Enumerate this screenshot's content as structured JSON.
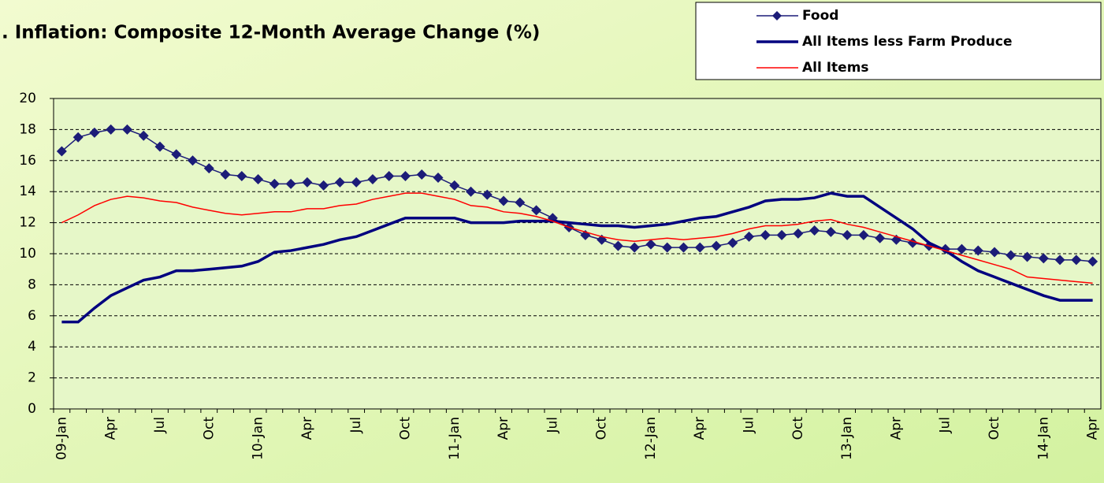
{
  "chart_data": {
    "type": "line",
    "title": ". Inflation: Composite 12-Month Average Change (%)",
    "categories": [
      "09-Jan",
      null,
      null,
      "Apr",
      null,
      null,
      "Jul",
      null,
      null,
      "Oct",
      null,
      null,
      "10-Jan",
      null,
      null,
      "Apr",
      null,
      null,
      "Jul",
      null,
      null,
      "Oct",
      null,
      null,
      "11-Jan",
      null,
      null,
      "Apr",
      null,
      null,
      "Jul",
      null,
      null,
      "Oct",
      null,
      null,
      "12-Jan",
      null,
      null,
      "Apr",
      null,
      null,
      "Jul",
      null,
      null,
      "Oct",
      null,
      null,
      "13-Jan",
      null,
      null,
      "Apr",
      null,
      null,
      "Jul",
      null,
      null,
      "Oct",
      null,
      null,
      "14-Jan",
      null,
      null,
      "Apr"
    ],
    "series": [
      {
        "name": "Food",
        "color": "#1c1c78",
        "marker": "diamond",
        "values": [
          16.6,
          17.5,
          17.8,
          18.0,
          18.0,
          17.6,
          16.9,
          16.4,
          16.0,
          15.5,
          15.1,
          15.0,
          14.8,
          14.5,
          14.5,
          14.6,
          14.4,
          14.6,
          14.6,
          14.8,
          15.0,
          15.0,
          15.1,
          14.9,
          14.4,
          14.0,
          13.8,
          13.4,
          13.3,
          12.8,
          12.3,
          11.7,
          11.2,
          10.9,
          10.5,
          10.4,
          10.6,
          10.4,
          10.4,
          10.4,
          10.5,
          10.7,
          11.1,
          11.2,
          11.2,
          11.3,
          11.5,
          11.4,
          11.2,
          11.2,
          11.0,
          10.9,
          10.7,
          10.5,
          10.3,
          10.3,
          10.2,
          10.1,
          9.9,
          9.8,
          9.7,
          9.6,
          9.6,
          9.5
        ]
      },
      {
        "name": "All Items less Farm Produce",
        "color": "#00007f",
        "values": [
          5.6,
          5.6,
          6.5,
          7.3,
          7.8,
          8.3,
          8.5,
          8.9,
          8.9,
          9.0,
          9.1,
          9.2,
          9.5,
          10.1,
          10.2,
          10.4,
          10.6,
          10.9,
          11.1,
          11.5,
          11.9,
          12.3,
          12.3,
          12.3,
          12.3,
          12.0,
          12.0,
          12.0,
          12.1,
          12.1,
          12.1,
          12.0,
          11.9,
          11.8,
          11.8,
          11.7,
          11.8,
          11.9,
          12.1,
          12.3,
          12.4,
          12.7,
          13.0,
          13.4,
          13.5,
          13.5,
          13.6,
          13.9,
          13.7,
          13.7,
          13.0,
          12.3,
          11.6,
          10.7,
          10.2,
          9.5,
          8.9,
          8.5,
          8.1,
          7.7,
          7.3,
          7.0,
          7.0,
          7.0
        ]
      },
      {
        "name": "All Items",
        "color": "#ff0000",
        "values": [
          12.0,
          12.5,
          13.1,
          13.5,
          13.7,
          13.6,
          13.4,
          13.3,
          13.0,
          12.8,
          12.6,
          12.5,
          12.6,
          12.7,
          12.7,
          12.9,
          12.9,
          13.1,
          13.2,
          13.5,
          13.7,
          13.9,
          13.9,
          13.7,
          13.5,
          13.1,
          13.0,
          12.7,
          12.6,
          12.4,
          12.1,
          11.7,
          11.4,
          11.1,
          10.9,
          10.8,
          10.9,
          11.0,
          10.9,
          11.0,
          11.1,
          11.3,
          11.6,
          11.8,
          11.8,
          11.9,
          12.1,
          12.2,
          11.9,
          11.7,
          11.4,
          11.1,
          10.8,
          10.5,
          10.2,
          9.9,
          9.6,
          9.3,
          9.0,
          8.5,
          8.4,
          8.3,
          8.2,
          8.1
        ]
      }
    ],
    "ylim": [
      0,
      20
    ],
    "yticks": [
      0,
      2,
      4,
      6,
      8,
      10,
      12,
      14,
      16,
      18,
      20
    ],
    "grid": true,
    "legend": "top-right"
  }
}
